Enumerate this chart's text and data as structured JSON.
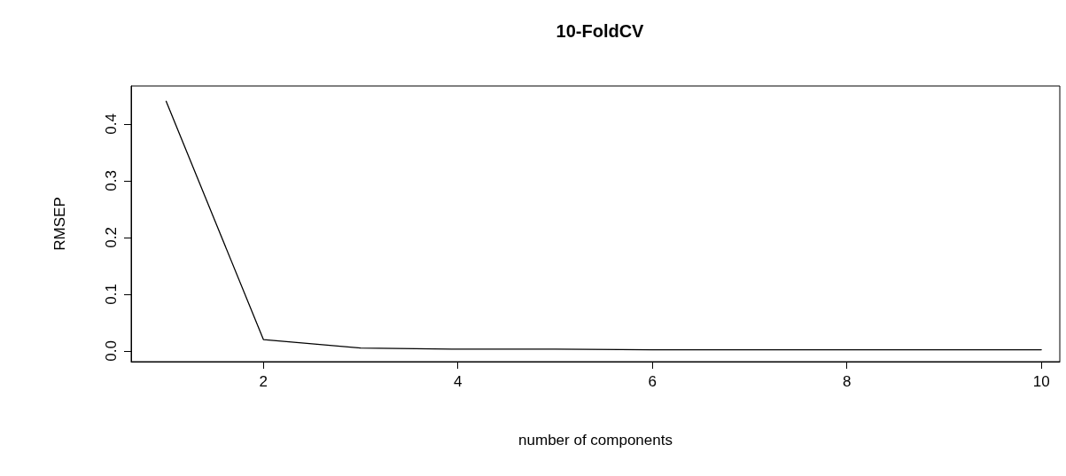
{
  "chart_data": {
    "type": "line",
    "title": "10-FoldCV",
    "xlabel": "number of components",
    "ylabel": "RMSEP",
    "x": [
      1,
      2,
      3,
      4,
      5,
      6,
      7,
      8,
      9,
      10
    ],
    "series": [
      {
        "color": "#000000",
        "values": [
          0.44,
          0.02,
          0.005,
          0.003,
          0.003,
          0.002,
          0.002,
          0.002,
          0.002,
          0.002
        ]
      }
    ],
    "xlim": [
      0.64,
      10.19
    ],
    "xticks": [
      2,
      4,
      6,
      8,
      10
    ],
    "ylim": [
      -0.019,
      0.467
    ],
    "yticks": [
      {
        "value": 0,
        "label": "0.0"
      },
      {
        "value": 0.1,
        "label": "0.1"
      },
      {
        "value": 0.2,
        "label": "0.2"
      },
      {
        "value": 0.3,
        "label": "0.3"
      },
      {
        "value": 0.4,
        "label": "0.4"
      }
    ],
    "grid": false,
    "marker": "none",
    "line_style": "solid"
  }
}
